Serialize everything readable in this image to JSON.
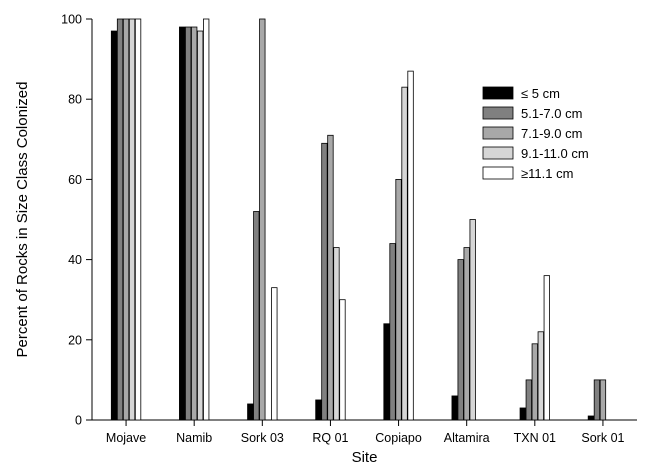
{
  "chart_data": {
    "type": "bar",
    "title": "",
    "xlabel": "Site",
    "ylabel": "Percent of Rocks in Size Class Colonized",
    "ylim": [
      0,
      100
    ],
    "yticks": [
      0,
      20,
      40,
      60,
      80,
      100
    ],
    "grid": false,
    "legend_position": "right",
    "categories": [
      "Mojave",
      "Namib",
      "Sork 03",
      "RQ 01",
      "Copiapo",
      "Altamira",
      "TXN 01",
      "Sork 01"
    ],
    "series": [
      {
        "name": "≤ 5 cm",
        "color": "#000000",
        "values": [
          97,
          98,
          4,
          5,
          24,
          6,
          3,
          1
        ]
      },
      {
        "name": "5.1-7.0 cm",
        "color": "#808080",
        "values": [
          100,
          98,
          52,
          69,
          44,
          40,
          10,
          10
        ]
      },
      {
        "name": "7.1-9.0 cm",
        "color": "#a8a8a8",
        "values": [
          100,
          98,
          100,
          71,
          60,
          43,
          19,
          10
        ]
      },
      {
        "name": "9.1-11.0 cm",
        "color": "#d6d6d6",
        "values": [
          100,
          97,
          0,
          43,
          83,
          50,
          22,
          0
        ]
      },
      {
        "name": "≥11.1 cm",
        "color": "#ffffff",
        "values": [
          100,
          100,
          33,
          30,
          87,
          0,
          36,
          0
        ]
      }
    ]
  }
}
